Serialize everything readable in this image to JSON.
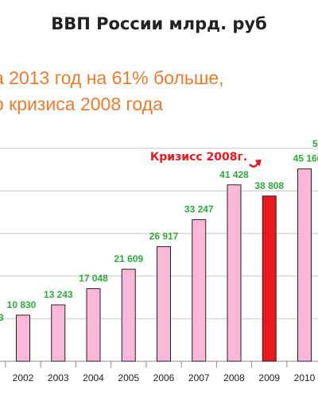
{
  "chart_data": {
    "type": "bar",
    "title": "ВВП России млрд. руб",
    "annotation_lines": [
      "а 2013 год на 61% больше,",
      "о кризиса 2008 года"
    ],
    "crisis_label": "Кризисс 2008г.",
    "categories": [
      "2002",
      "2003",
      "2004",
      "2005",
      "2006",
      "2007",
      "2008",
      "2009",
      "2010"
    ],
    "values": [
      10830,
      13243,
      17048,
      21609,
      26917,
      33247,
      41428,
      38808,
      45166
    ],
    "value_labels": [
      "10 830",
      "13 243",
      "17 048",
      "21 609",
      "26 917",
      "33 247",
      "41 428",
      "38 808",
      "45 166"
    ],
    "highlight_category": "2009",
    "partial_label_left": "3",
    "partial_label_right_top": "5",
    "ylim": [
      0,
      55000
    ],
    "grid": true,
    "colors": {
      "bar": "#f9b8d6",
      "highlight_bar": "#e8191b",
      "value_text": "#2eaa3d",
      "annotation": "#f07a2a",
      "crisis_text": "#e8191b"
    }
  }
}
